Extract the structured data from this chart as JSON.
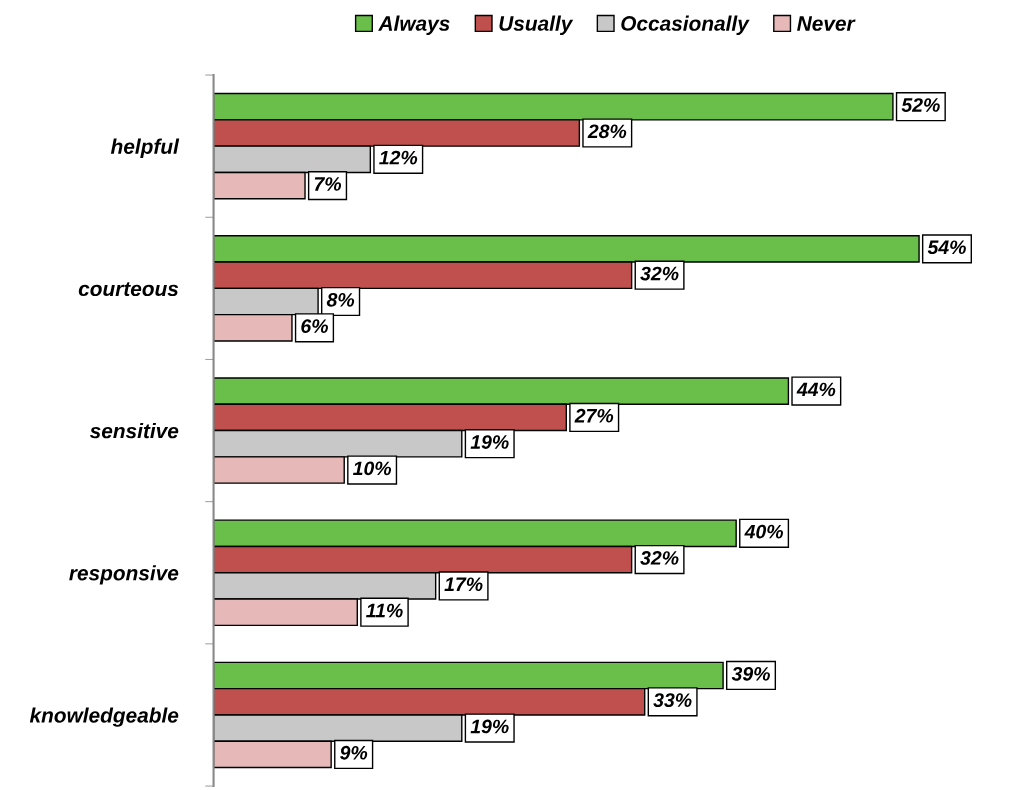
{
  "chart_data": {
    "type": "bar",
    "orientation": "horizontal",
    "categories": [
      "helpful",
      "courteous",
      "sensitive",
      "responsive",
      "knowledgeable"
    ],
    "series": [
      {
        "name": "Always",
        "color": "#6abf4b",
        "values": [
          52,
          54,
          44,
          40,
          39
        ],
        "value_labels": [
          "52%",
          "54%",
          "44%",
          "40%",
          "39%"
        ]
      },
      {
        "name": "Usually",
        "color": "#c0504d",
        "values": [
          28,
          32,
          27,
          32,
          33
        ],
        "value_labels": [
          "28%",
          "32%",
          "27%",
          "32%",
          "33%"
        ]
      },
      {
        "name": "Occasionally",
        "color": "#c8c8c8",
        "values": [
          12,
          8,
          19,
          17,
          19
        ],
        "value_labels": [
          "12%",
          "8%",
          "19%",
          "17%",
          "19%"
        ]
      },
      {
        "name": "Never",
        "color": "#e6b9b8",
        "values": [
          7,
          6,
          10,
          11,
          9
        ],
        "value_labels": [
          "7%",
          "6%",
          "10%",
          "11%",
          "9%"
        ]
      }
    ],
    "legend": "top",
    "grid": false
  }
}
